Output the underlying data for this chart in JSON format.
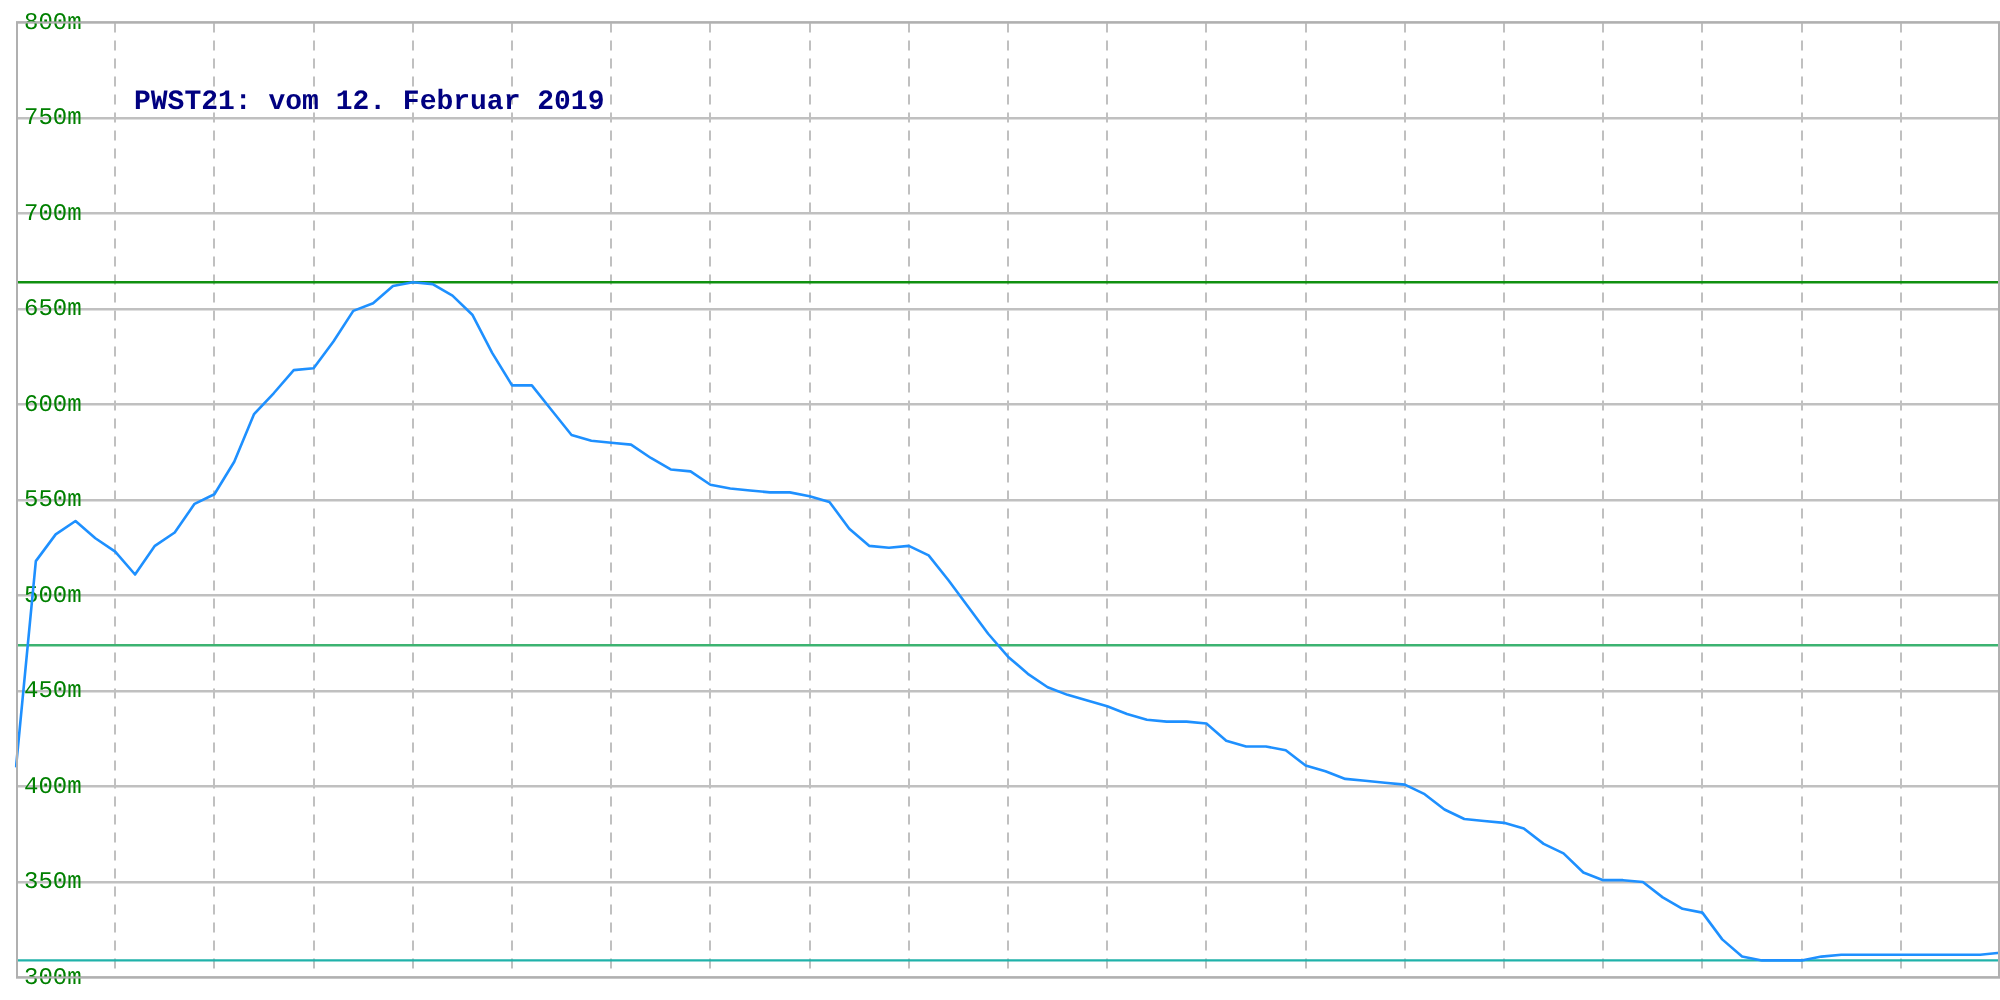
{
  "chart_data": {
    "type": "line",
    "title": "PWST21: vom 12. Februar 2019",
    "categories": [
      null,
      null,
      null,
      null,
      null,
      null,
      null,
      null,
      null,
      null,
      null,
      null,
      null,
      null,
      null,
      null,
      null,
      null,
      null,
      null,
      null,
      null,
      null,
      null,
      null,
      null,
      null,
      null,
      null,
      null,
      null,
      null,
      null,
      null,
      null,
      null,
      null,
      null,
      null,
      null,
      null,
      null,
      null,
      null,
      null,
      null,
      null,
      null,
      null,
      null,
      null,
      null,
      null,
      null,
      null,
      null,
      null,
      null,
      null,
      null,
      null,
      null,
      null,
      null,
      null,
      null,
      null,
      null,
      null,
      null,
      null,
      null,
      null,
      null,
      null,
      null,
      null,
      null,
      null,
      null,
      null,
      null,
      null,
      null,
      null,
      null,
      null,
      null,
      null,
      null,
      null,
      null,
      null,
      null,
      null,
      null,
      null,
      null,
      null,
      null,
      null
    ],
    "series": [
      {
        "color": "#1e90ff",
        "values": [
          410,
          518,
          532,
          539,
          530,
          523,
          511,
          526,
          533,
          548,
          553,
          570,
          595,
          606,
          618,
          619,
          633,
          649,
          653,
          662,
          664,
          663,
          657,
          647,
          627,
          610,
          610,
          597,
          584,
          581,
          580,
          579,
          572,
          566,
          565,
          558,
          556,
          555,
          554,
          554,
          552,
          549,
          535,
          526,
          525,
          526,
          521,
          508,
          494,
          480,
          468,
          459,
          452,
          448,
          445,
          442,
          438,
          435,
          434,
          434,
          433,
          424,
          421,
          421,
          419,
          411,
          408,
          404,
          403,
          402,
          401,
          396,
          388,
          383,
          382,
          381,
          378,
          370,
          365,
          355,
          351,
          351,
          350,
          342,
          336,
          334,
          320,
          311,
          309,
          309,
          309,
          311,
          312,
          312,
          312,
          312,
          312,
          312,
          312,
          312,
          313
        ]
      }
    ],
    "ylim": [
      300,
      800
    ],
    "yticks": [
      {
        "value": 300,
        "label": "300m"
      },
      {
        "value": 350,
        "label": "350m"
      },
      {
        "value": 400,
        "label": "400m"
      },
      {
        "value": 450,
        "label": "450m"
      },
      {
        "value": 500,
        "label": "500m"
      },
      {
        "value": 550,
        "label": "550m"
      },
      {
        "value": 600,
        "label": "600m"
      },
      {
        "value": 650,
        "label": "650m"
      },
      {
        "value": 700,
        "label": "700m"
      },
      {
        "value": 750,
        "label": "750m"
      },
      {
        "value": 800,
        "label": "800m"
      }
    ],
    "ref_lines": [
      {
        "axis": "y",
        "value": 664,
        "color": "#109010"
      },
      {
        "axis": "y",
        "value": 474,
        "color": "#3cb371"
      },
      {
        "axis": "y",
        "value": 309,
        "color": "#20b2aa"
      }
    ],
    "grid": true,
    "tick_labels": "y",
    "legend": false,
    "marker": "none",
    "line_style": "solid"
  }
}
